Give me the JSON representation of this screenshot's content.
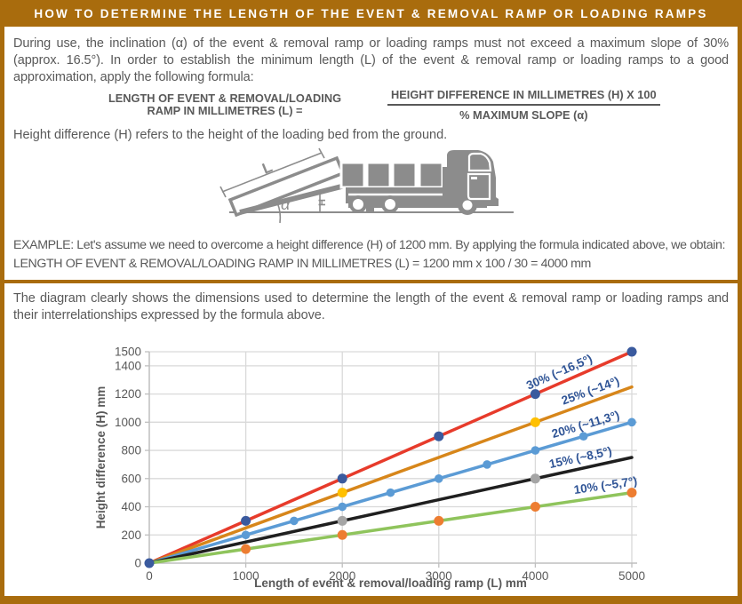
{
  "colors": {
    "accent_bronze": "#a96c0d",
    "body_text": "#595959",
    "illustration_gray": "#8c8c8c"
  },
  "header": {
    "title": "HOW TO DETERMINE THE LENGTH OF THE EVENT & REMOVAL RAMP OR LOADING RAMPS"
  },
  "intro": {
    "text": "During use, the inclination (α) of the event & removal ramp or loading ramps must not exceed a maximum slope of 30% (approx. 16.5°). In order to establish the minimum length (L) of the event & removal ramp or loading ramps to a good approximation, apply the following formula:"
  },
  "formula": {
    "lhs_line1": "LENGTH OF EVENT & REMOVAL/LOADING",
    "lhs_line2": "RAMP IN MILLIMETRES (L) =",
    "numerator": "HEIGHT DIFFERENCE IN MILLIMETRES (H) X 100",
    "denominator": "% MAXIMUM SLOPE (α)"
  },
  "height_note": "Height difference (H) refers to the height of the loading bed from the ground.",
  "illustration": {
    "labels": {
      "length": "L",
      "angle": "α",
      "height": "H"
    }
  },
  "example": {
    "line1": "EXAMPLE: Let's assume we need to overcome a height difference (H) of 1200 mm. By applying the formula indicated above, we obtain:",
    "line2": "LENGTH OF EVENT & REMOVAL/LOADING RAMP IN MILLIMETRES (L) = 1200 mm x 100 / 30 = 4000 mm"
  },
  "diagram_note": "The diagram clearly shows the dimensions used to determine the length of the event & removal ramp or loading ramps and their interrelationships expressed by the formula above.",
  "chart_data": {
    "type": "line",
    "xlabel": "Length of event & removal/loading ramp (L) mm",
    "ylabel": "Height difference (H) mm",
    "xlim": [
      0,
      5000
    ],
    "ylim": [
      0,
      1500
    ],
    "x_ticks": [
      0,
      1000,
      2000,
      3000,
      4000,
      5000
    ],
    "y_ticks": [
      0,
      200,
      400,
      600,
      800,
      1000,
      1200,
      1400,
      1500
    ],
    "grid": true,
    "legend_position": "inline-labels-on-lines",
    "label_color": "#2f5496",
    "grid_color": "#d9d9d9",
    "axis_color": "#bfbfbf",
    "tick_text_color": "#595959",
    "series": [
      {
        "name": "30% (~16,5°)",
        "slope_percent": 30,
        "line_color": "#e73b2b",
        "marker_color": "#3a5a9e",
        "marker_radius": 5.5,
        "line": [
          [
            0,
            0
          ],
          [
            5000,
            1500
          ]
        ],
        "points": [
          [
            0,
            0
          ],
          [
            1000,
            300
          ],
          [
            2000,
            600
          ],
          [
            3000,
            900
          ],
          [
            4000,
            1200
          ],
          [
            5000,
            1500
          ]
        ],
        "label_anchor_x": 4600,
        "label_dy": -8
      },
      {
        "name": "25% (~14°)",
        "slope_percent": 25,
        "line_color": "#d7861a",
        "marker_color": "#ffc000",
        "marker_radius": 5.5,
        "line": [
          [
            0,
            0
          ],
          [
            5000,
            1250
          ]
        ],
        "points": [
          [
            2000,
            500
          ],
          [
            4000,
            1000
          ]
        ],
        "label_anchor_x": 4880,
        "label_dy": -8
      },
      {
        "name": "20% (~11,3°)",
        "slope_percent": 20,
        "line_color": "#5b9bd5",
        "marker_color": "#5b9bd5",
        "marker_radius": 4.8,
        "line": [
          [
            0,
            0
          ],
          [
            5000,
            1000
          ]
        ],
        "points": [
          [
            1000,
            200
          ],
          [
            1500,
            300
          ],
          [
            2000,
            400
          ],
          [
            2500,
            500
          ],
          [
            3000,
            600
          ],
          [
            3500,
            700
          ],
          [
            4000,
            800
          ],
          [
            4500,
            900
          ],
          [
            5000,
            1000
          ]
        ],
        "label_anchor_x": 4880,
        "label_dy": -8
      },
      {
        "name": "15% (~8,5°)",
        "slope_percent": 15,
        "line_color": "#1f1f1f",
        "marker_color": "#a5a5a5",
        "marker_radius": 5.5,
        "line": [
          [
            0,
            0
          ],
          [
            5000,
            750
          ]
        ],
        "points": [
          [
            2000,
            300
          ],
          [
            4000,
            600
          ]
        ],
        "label_anchor_x": 4800,
        "label_dy": -8
      },
      {
        "name": "10% (~5,7°)",
        "slope_percent": 10,
        "line_color": "#8fc45c",
        "marker_color": "#ed7d31",
        "marker_radius": 5.5,
        "line": [
          [
            0,
            0
          ],
          [
            5000,
            500
          ]
        ],
        "points": [
          [
            1000,
            100
          ],
          [
            2000,
            200
          ],
          [
            3000,
            300
          ],
          [
            4000,
            400
          ],
          [
            5000,
            500
          ]
        ],
        "label_anchor_x": 5060,
        "label_dy": -8
      }
    ]
  }
}
